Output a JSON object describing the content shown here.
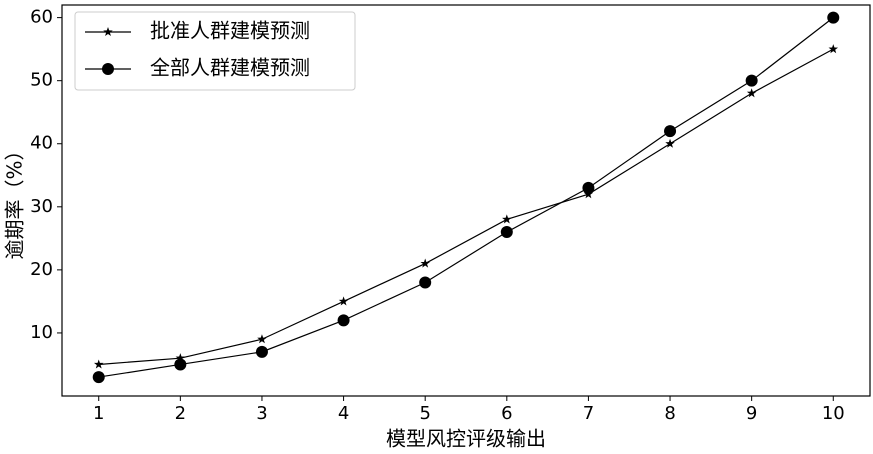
{
  "chart_data": {
    "type": "line",
    "x": [
      1,
      2,
      3,
      4,
      5,
      6,
      7,
      8,
      9,
      10
    ],
    "series": [
      {
        "name": "批准人群建模预测",
        "color": "#000000",
        "marker": "star",
        "values": [
          5,
          6,
          9,
          15,
          21,
          28,
          32,
          40,
          48,
          55
        ]
      },
      {
        "name": "全部人群建模预测",
        "color": "#000000",
        "marker": "circle",
        "values": [
          3,
          5,
          7,
          12,
          18,
          26,
          33,
          42,
          50,
          60
        ]
      }
    ],
    "xlabel": "模型风控评级输出",
    "ylabel": "逾期率（%）",
    "xlim": [
      0.55,
      10.45
    ],
    "ylim": [
      0,
      62
    ],
    "xticks": [
      1,
      2,
      3,
      4,
      5,
      6,
      7,
      8,
      9,
      10
    ],
    "yticks": [
      10,
      20,
      30,
      40,
      50,
      60
    ],
    "grid": false,
    "legend": "upper-left"
  }
}
